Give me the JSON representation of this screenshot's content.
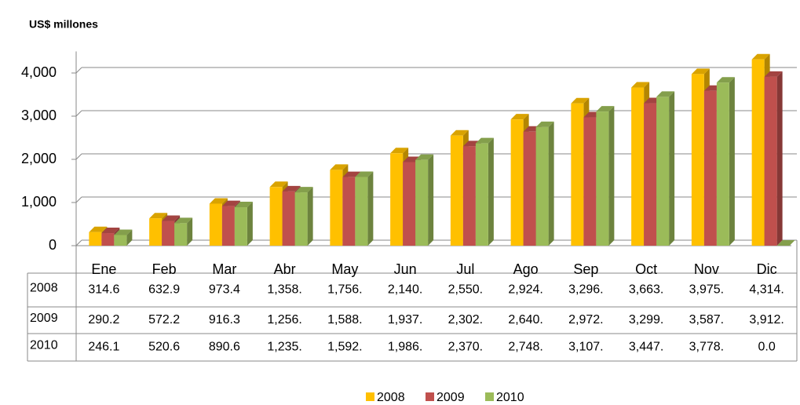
{
  "chart_data": {
    "type": "bar",
    "title": "US$ millones",
    "categories": [
      "Ene",
      "Feb",
      "Mar",
      "Abr",
      "May",
      "Jun",
      "Jul",
      "Ago",
      "Sep",
      "Oct",
      "Nov",
      "Dic"
    ],
    "series": [
      {
        "name": "2008",
        "color": "#ffc000",
        "values": [
          314.6,
          632.9,
          973.4,
          1358,
          1756,
          2140,
          2550,
          2924,
          3296,
          3663,
          3975,
          4314
        ],
        "value_labels": [
          "314.6",
          "632.9",
          "973.4",
          "1,358.",
          "1,756.",
          "2,140.",
          "2,550.",
          "2,924.",
          "3,296.",
          "3,663.",
          "3,975.",
          "4,314."
        ]
      },
      {
        "name": "2009",
        "color": "#c0504d",
        "values": [
          290.2,
          572.2,
          916.3,
          1256,
          1588,
          1937,
          2302,
          2640,
          2972,
          3299,
          3587,
          3912
        ],
        "value_labels": [
          "290.2",
          "572.2",
          "916.3",
          "1,256.",
          "1,588.",
          "1,937.",
          "2,302.",
          "2,640.",
          "2,972.",
          "3,299.",
          "3,587.",
          "3,912."
        ]
      },
      {
        "name": "2010",
        "color": "#9bbb59",
        "values": [
          246.1,
          520.6,
          890.6,
          1235,
          1592,
          1986,
          2370,
          2748,
          3107,
          3447,
          3778,
          0.0
        ],
        "value_labels": [
          "246.1",
          "520.6",
          "890.6",
          "1,235.",
          "1,592.",
          "1,986.",
          "2,370.",
          "2,748.",
          "3,107.",
          "3,447.",
          "3,778.",
          "0.0"
        ]
      }
    ],
    "ylim": [
      0,
      4500
    ],
    "yticks": [
      0,
      {
        "value": 1000,
        "label": "1,000"
      },
      {
        "value": 2000,
        "label": "2,000"
      },
      {
        "value": 3000,
        "label": "3,000"
      },
      {
        "value": 4000,
        "label": "4,000"
      }
    ],
    "grid": true,
    "legend": "bottom"
  }
}
